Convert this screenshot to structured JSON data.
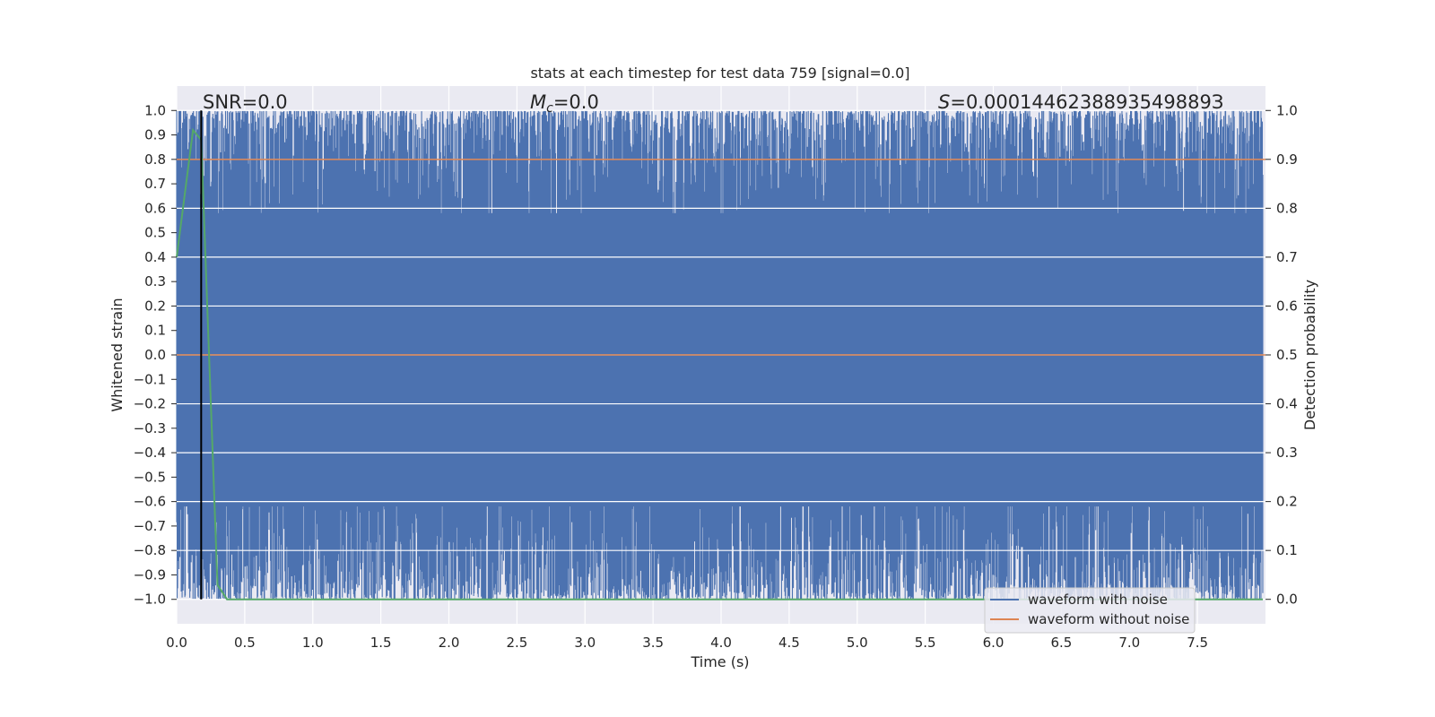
{
  "chart_data": {
    "type": "line",
    "title": "stats at each timestep for test data 759 [signal=0.0]",
    "xlabel": "Time (s)",
    "ylabel": "Whitened strain",
    "ylabel_right": "Detection probability",
    "xlim": [
      0.0,
      8.0
    ],
    "ylim": [
      -1.1,
      1.1
    ],
    "ylim_right": [
      -0.05,
      1.05
    ],
    "xticks": [
      "0.0",
      "0.5",
      "1.0",
      "1.5",
      "2.0",
      "2.5",
      "3.0",
      "3.5",
      "4.0",
      "4.5",
      "5.0",
      "5.5",
      "6.0",
      "6.5",
      "7.0",
      "7.5"
    ],
    "yticks": [
      "1.0",
      "0.9",
      "0.8",
      "0.7",
      "0.6",
      "0.5",
      "0.4",
      "0.3",
      "0.2",
      "0.1",
      "0.0",
      "−0.1",
      "−0.2",
      "−0.3",
      "−0.4",
      "−0.5",
      "−0.6",
      "−0.7",
      "−0.8",
      "−0.9",
      "−1.0"
    ],
    "yticks_right": [
      "1.0",
      "0.9",
      "0.8",
      "0.7",
      "0.6",
      "0.5",
      "0.4",
      "0.3",
      "0.2",
      "0.1",
      "0.0"
    ],
    "grid": true,
    "legend_position": "lower-right",
    "annotations": {
      "snr": "SNR=0.0",
      "mc_symbol": "M",
      "mc_sub": "c",
      "mc_value": "=0.0",
      "s_symbol": "S",
      "s_value": "=0.0001446238893549889З"
    },
    "series": [
      {
        "name": "waveform with noise",
        "color": "#4c72b0",
        "description_values": "dense noise spanning roughly -1.0 to 1.0 over 0 to 8 s",
        "y_range": [
          -1.0,
          1.0
        ]
      },
      {
        "name": "waveform without noise",
        "color": "#dd8452",
        "values_const": 0.0
      },
      {
        "axis": "right",
        "color": "#55a868",
        "x": [
          0.0,
          0.12,
          0.18,
          0.3,
          0.37,
          7.98
        ],
        "y": [
          0.7,
          0.96,
          0.94,
          0.03,
          0.0,
          0.0
        ]
      },
      {
        "axis": "right",
        "color": "#dd8452",
        "values_const": 0.9
      }
    ],
    "vline_x": 0.18,
    "vline_color": "#000000"
  }
}
